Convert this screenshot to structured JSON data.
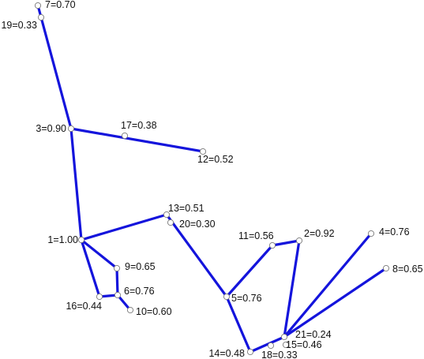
{
  "nodes": [
    {
      "id": "1",
      "label": "1=1.00"
    },
    {
      "id": "2",
      "label": "2=0.92"
    },
    {
      "id": "3",
      "label": "3=0.90"
    },
    {
      "id": "4",
      "label": "4=0.76"
    },
    {
      "id": "5",
      "label": "5=0.76"
    },
    {
      "id": "6",
      "label": "6=0.76"
    },
    {
      "id": "7",
      "label": "7=0.70"
    },
    {
      "id": "8",
      "label": "8=0.65"
    },
    {
      "id": "9",
      "label": "9=0.65"
    },
    {
      "id": "10",
      "label": "10=0.60"
    },
    {
      "id": "11",
      "label": "11=0.56"
    },
    {
      "id": "12",
      "label": "12=0.52"
    },
    {
      "id": "13",
      "label": "13=0.51"
    },
    {
      "id": "14",
      "label": "14=0.48"
    },
    {
      "id": "15",
      "label": "15=0.46"
    },
    {
      "id": "16",
      "label": "16=0.44"
    },
    {
      "id": "17",
      "label": "17=0.38"
    },
    {
      "id": "18",
      "label": "18=0.33"
    },
    {
      "id": "19",
      "label": "19=0.33"
    },
    {
      "id": "20",
      "label": "20=0.30"
    },
    {
      "id": "21",
      "label": "21=0.24"
    }
  ],
  "edges": [
    [
      "7",
      "3"
    ],
    [
      "3",
      "12"
    ],
    [
      "3",
      "1"
    ],
    [
      "1",
      "13"
    ],
    [
      "13",
      "5"
    ],
    [
      "1",
      "9"
    ],
    [
      "9",
      "6"
    ],
    [
      "1",
      "16"
    ],
    [
      "16",
      "6"
    ],
    [
      "6",
      "10"
    ],
    [
      "5",
      "11"
    ],
    [
      "11",
      "2"
    ],
    [
      "2",
      "21"
    ],
    [
      "5",
      "14"
    ],
    [
      "14",
      "21"
    ],
    [
      "21",
      "4"
    ],
    [
      "21",
      "8"
    ]
  ],
  "colors": {
    "edge": "#1414dc",
    "node_stroke": "#7a7a7a",
    "node_fill": "#ffffff"
  }
}
